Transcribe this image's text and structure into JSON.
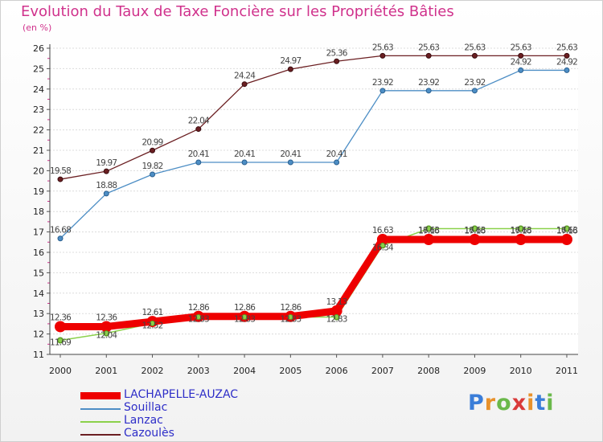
{
  "title": "Evolution du Taux de Taxe Foncière sur les Propriétés Bâties",
  "unit": "(en %)",
  "brand": {
    "letters": [
      "P",
      "r",
      "o",
      "x",
      "i",
      "t",
      "i"
    ],
    "colors": [
      "#3a7dd8",
      "#e8912a",
      "#6ab84a",
      "#d93a3a",
      "#e8912a",
      "#3a7dd8",
      "#6ab84a"
    ]
  },
  "chart_data": {
    "type": "line",
    "title": "Evolution du Taux de Taxe Foncière sur les Propriétés Bâties",
    "ylabel": "(en %)",
    "xlabel": "",
    "ylim": [
      11,
      26
    ],
    "yticks": [
      "11",
      "12",
      "13",
      "14",
      "15",
      "16",
      "17",
      "18",
      "19",
      "20",
      "21",
      "22",
      "23",
      "24",
      "25",
      "26"
    ],
    "categories": [
      "2000",
      "2001",
      "2002",
      "2003",
      "2004",
      "2005",
      "2006",
      "2007",
      "2008",
      "2009",
      "2010",
      "2011"
    ],
    "series": [
      {
        "name": "Cazoulès",
        "color": "#6b1f22",
        "values": [
          19.58,
          19.97,
          20.99,
          22.04,
          24.24,
          24.97,
          25.36,
          25.63,
          25.63,
          25.63,
          25.63,
          25.63
        ],
        "labels": [
          "19.58",
          "19.97",
          "20.99",
          "22.04",
          "24.24",
          "24.97",
          "25.36",
          "25.63",
          "25.63",
          "25.63",
          "25.63",
          "25.63"
        ]
      },
      {
        "name": "Souillac",
        "color": "#4d8ec5",
        "values": [
          16.68,
          18.88,
          19.82,
          20.41,
          20.41,
          20.41,
          20.41,
          23.92,
          23.92,
          23.92,
          24.92,
          24.92
        ],
        "labels": [
          "16.68",
          "18.88",
          "19.82",
          "20.41",
          "20.41",
          "20.41",
          "20.41",
          "23.92",
          "23.92",
          "23.92",
          "24.92",
          "24.92"
        ]
      },
      {
        "name": "Lanzac",
        "color": "#8bd14a",
        "values": [
          11.69,
          12.04,
          12.52,
          12.83,
          12.83,
          12.83,
          12.83,
          16.34,
          17.16,
          17.16,
          17.16,
          17.16
        ],
        "labels": [
          "11.69",
          "12.04",
          "12.52",
          "12.83",
          "12.83",
          "12.83",
          "12.83",
          "16.34",
          "17.16",
          "17.16",
          "17.16",
          "17.16"
        ]
      },
      {
        "name": "LACHAPELLE-AUZAC",
        "color": "#ee0000",
        "values": [
          12.36,
          12.36,
          12.61,
          12.86,
          12.86,
          12.86,
          13.13,
          16.63,
          16.63,
          16.63,
          16.63,
          16.63
        ],
        "labels": [
          "12.36",
          "12.36",
          "12.61",
          "12.86",
          "12.86",
          "12.86",
          "13.13",
          "16.63",
          "16.63",
          "16.63",
          "16.63",
          "16.63"
        ]
      }
    ],
    "legend": [
      "LACHAPELLE-AUZAC",
      "Souillac",
      "Lanzac",
      "Cazoulès"
    ]
  }
}
